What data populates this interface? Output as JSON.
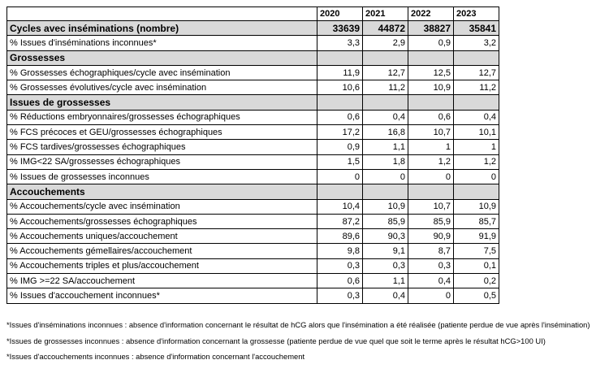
{
  "table": {
    "columns": [
      "2020",
      "2021",
      "2022",
      "2023"
    ],
    "rows": [
      [
        "Cycles avec inséminations (nombre)",
        "33639",
        "44872",
        "38827",
        "35841"
      ],
      [
        "% Issues d'inséminations inconnues*",
        "3,3",
        "2,9",
        "0,9",
        "3,2"
      ],
      [
        "Grossesses"
      ],
      [
        "% Grossesses échographiques/cycle avec insémination",
        "11,9",
        "12,7",
        "12,5",
        "12,7"
      ],
      [
        "% Grossesses évolutives/cycle avec insémination",
        "10,6",
        "11,2",
        "10,9",
        "11,2"
      ],
      [
        "Issues de grossesses"
      ],
      [
        "% Réductions embryonnaires/grossesses échographiques",
        "0,6",
        "0,4",
        "0,6",
        "0,4"
      ],
      [
        "% FCS précoces et GEU/grossesses échographiques",
        "17,2",
        "16,8",
        "10,7",
        "10,1"
      ],
      [
        "% FCS tardives/grossesses échographiques",
        "0,9",
        "1,1",
        "1",
        "1"
      ],
      [
        "% IMG<22 SA/grossesses échographiques",
        "1,5",
        "1,8",
        "1,2",
        "1,2"
      ],
      [
        "% Issues de grossesses inconnues",
        "0",
        "0",
        "0",
        "0"
      ],
      [
        "Accouchements"
      ],
      [
        "% Accouchements/cycle avec insémination",
        "10,4",
        "10,9",
        "10,7",
        "10,9"
      ],
      [
        "% Accouchements/grossesses échographiques",
        "87,2",
        "85,9",
        "85,9",
        "85,7"
      ],
      [
        "% Accouchements uniques/accouchement",
        "89,6",
        "90,3",
        "90,9",
        "91,9"
      ],
      [
        "% Accouchements gémellaires/accouchement",
        "9,8",
        "9,1",
        "8,7",
        "7,5"
      ],
      [
        "% Accouchements triples et plus/accouchement",
        "0,3",
        "0,3",
        "0,3",
        "0,1"
      ],
      [
        "% IMG >=22 SA/accouchement",
        "0,6",
        "1,1",
        "0,4",
        "0,2"
      ],
      [
        "% Issues d'accouchement inconnues*",
        "0,3",
        "0,4",
        "0",
        "0,5"
      ]
    ]
  },
  "footnotes": [
    "*Issues d'inséminations inconnues : absence d'information concernant le résultat de hCG alors que l'insémination a été réalisée (patiente perdue de vue après l'insémination)",
    "*Issues de grossesses inconnues : absence d'information concernant la grossesse (patiente perdue de vue quel que soit le terme après le résultat hCG>100 UI)",
    "*Issues d'accouchements inconnues : absence d'information concernant l'accouchement"
  ]
}
